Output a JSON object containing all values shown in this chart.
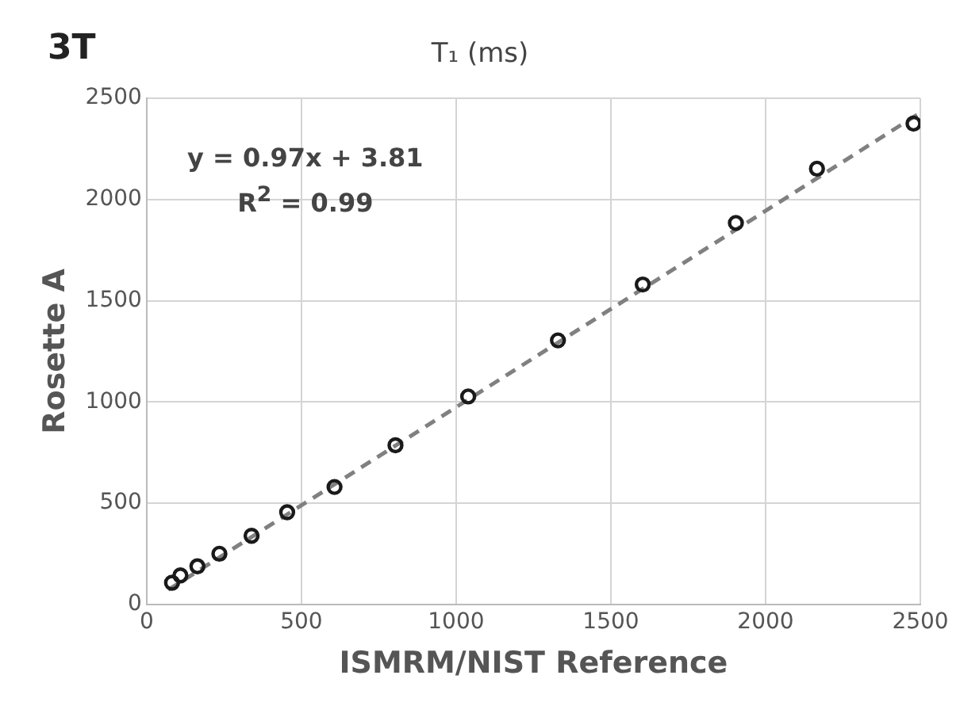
{
  "chart_data": {
    "type": "scatter",
    "title": "T₁ (ms)",
    "xlabel": "ISMRM/NIST Reference",
    "ylabel": "Rosette A",
    "annotations": [
      "3T",
      "y = 0.97x + 3.81",
      "R$^{2}$ = 0.99"
    ],
    "series": [
      {
        "color": "#1a1a1a",
        "marker": "circle",
        "x": [
          82,
          109,
          164,
          235,
          339,
          454,
          607,
          804,
          1039,
          1329,
          1603,
          1904,
          2166,
          2478
        ],
        "values": [
          107,
          143,
          188,
          250,
          339,
          455,
          580,
          786,
          1027,
          1304,
          1580,
          1884,
          2152,
          2375
        ]
      },
      {
        "type": "line",
        "color": "#808080",
        "line_style": "dashed",
        "marker": "none",
        "x": [
          70,
          2490
        ],
        "values": [
          72,
          2419
        ]
      }
    ],
    "xlim": [
      0,
      2500
    ],
    "xticks": [
      0,
      500,
      1000,
      1500,
      2000,
      2500
    ],
    "ylim": [
      0,
      2500
    ],
    "yticks": [
      0,
      500,
      1000,
      1500,
      2000,
      2500
    ],
    "grid": true,
    "legend": false
  }
}
